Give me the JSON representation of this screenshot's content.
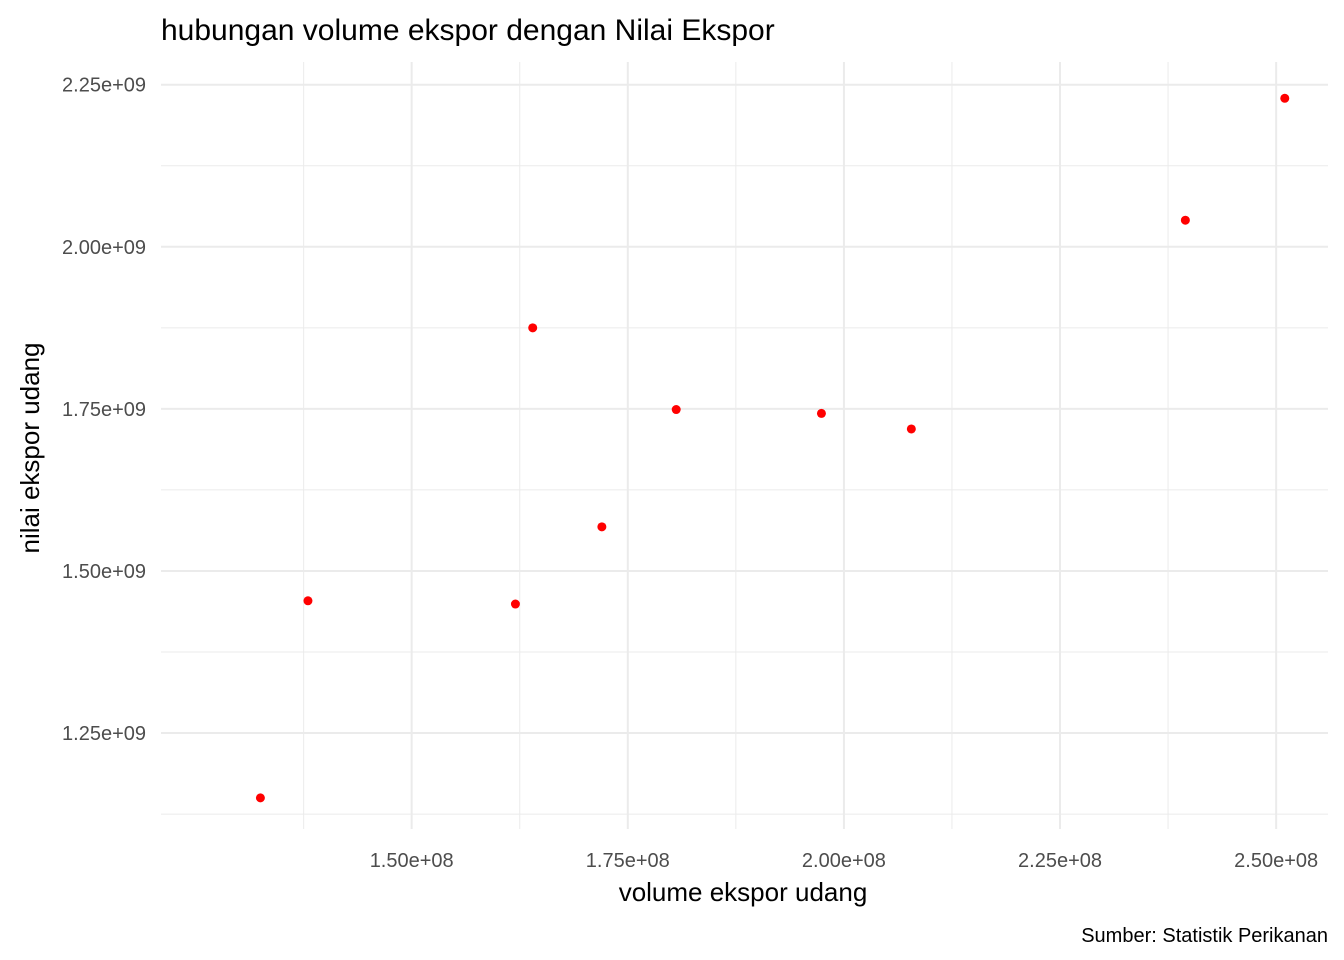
{
  "chart_data": {
    "type": "scatter",
    "title": "hubungan volume ekspor dengan Nilai Ekspor",
    "xlabel": "volume ekspor udang",
    "ylabel": "nilai ekspor udang",
    "caption": "Sumber: Statistik Perikanan",
    "x_ticks": [
      {
        "value": 150000000,
        "label": "1.50e+08"
      },
      {
        "value": 175000000,
        "label": "1.75e+08"
      },
      {
        "value": 200000000,
        "label": "2.00e+08"
      },
      {
        "value": 225000000,
        "label": "2.25e+08"
      },
      {
        "value": 250000000,
        "label": "2.50e+08"
      }
    ],
    "y_ticks": [
      {
        "value": 1250000000,
        "label": "1.25e+09"
      },
      {
        "value": 1500000000,
        "label": "1.50e+09"
      },
      {
        "value": 1750000000,
        "label": "1.75e+09"
      },
      {
        "value": 2000000000,
        "label": "2.00e+09"
      },
      {
        "value": 2250000000,
        "label": "2.25e+09"
      }
    ],
    "xlim": [
      121000000,
      256000000
    ],
    "ylim": [
      1102000000,
      2285000000
    ],
    "grid": true,
    "point_color": "#ff0000",
    "points": [
      {
        "x": 132500000,
        "y": 1150000000
      },
      {
        "x": 138000000,
        "y": 1454000000
      },
      {
        "x": 162000000,
        "y": 1449000000
      },
      {
        "x": 164000000,
        "y": 1875000000
      },
      {
        "x": 172000000,
        "y": 1568000000
      },
      {
        "x": 180600000,
        "y": 1749000000
      },
      {
        "x": 197400000,
        "y": 1743000000
      },
      {
        "x": 207800000,
        "y": 1719000000
      },
      {
        "x": 239500000,
        "y": 2041000000
      },
      {
        "x": 251000000,
        "y": 2229000000
      }
    ]
  }
}
